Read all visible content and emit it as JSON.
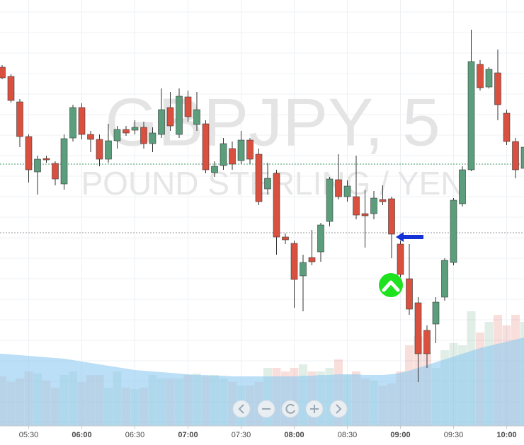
{
  "chart_data": {
    "type": "candlestick",
    "title": "GBPJPY, 5",
    "subtitle": "POUND STERLING / YEN",
    "x": [
      null,
      null,
      null,
      "05:30",
      null,
      null,
      null,
      null,
      null,
      "06:00",
      null,
      null,
      null,
      null,
      null,
      "06:30",
      null,
      null,
      null,
      null,
      null,
      "07:00",
      null,
      null,
      null,
      null,
      null,
      "07:30",
      null,
      null,
      null,
      null,
      null,
      "08:00",
      null,
      null,
      null,
      null,
      null,
      "08:30",
      null,
      null,
      null,
      null,
      null,
      "09:00",
      null,
      null,
      null,
      null,
      null,
      "09:30",
      null,
      null,
      null,
      null,
      null,
      "10:00",
      null,
      null
    ],
    "open": [
      505,
      492,
      456,
      407,
      357,
      376,
      369,
      340,
      405,
      448,
      410,
      403,
      375,
      401,
      417,
      416,
      420,
      397,
      410,
      448,
      410,
      463,
      424,
      425,
      356,
      366,
      390,
      373,
      402,
      382,
      333,
      355,
      265,
      256,
      210,
      236,
      244,
      287,
      346,
      322,
      322,
      298,
      298,
      318,
      319,
      255,
      206,
      172,
      133,
      142,
      180,
      229,
      312,
      360,
      509,
      477,
      497,
      440,
      400,
      362
    ],
    "high": [
      508,
      495,
      460,
      410,
      380,
      380,
      372,
      410,
      452,
      454,
      415,
      410,
      425,
      422,
      422,
      430,
      428,
      420,
      475,
      470,
      475,
      472,
      470,
      430,
      372,
      405,
      400,
      415,
      405,
      390,
      370,
      360,
      270,
      260,
      240,
      275,
      285,
      350,
      382,
      345,
      380,
      332,
      330,
      338,
      322,
      260,
      255,
      180,
      140,
      180,
      235,
      320,
      365,
      558,
      515,
      505,
      530,
      445,
      405,
      395
    ],
    "low": [
      488,
      455,
      392,
      342,
      325,
      370,
      338,
      332,
      400,
      403,
      385,
      365,
      370,
      390,
      408,
      410,
      390,
      385,
      405,
      415,
      405,
      428,
      415,
      355,
      350,
      360,
      360,
      368,
      368,
      310,
      325,
      240,
      255,
      165,
      160,
      225,
      230,
      280,
      318,
      315,
      290,
      250,
      290,
      310,
      235,
      208,
      155,
      60,
      80,
      115,
      175,
      225,
      308,
      358,
      472,
      475,
      430,
      395,
      348,
      355
    ],
    "close": [
      490,
      458,
      407,
      360,
      375,
      374,
      347,
      404,
      448,
      410,
      403,
      375,
      401,
      417,
      412,
      420,
      397,
      412,
      445,
      422,
      464,
      435,
      445,
      360,
      365,
      397,
      368,
      402,
      375,
      315,
      348,
      265,
      261,
      205,
      229,
      230,
      282,
      347,
      322,
      337,
      296,
      295,
      320,
      315,
      269,
      212,
      163,
      100,
      100,
      173,
      232,
      317,
      360,
      513,
      476,
      502,
      452,
      400,
      360,
      392
    ],
    "volume": [
      70,
      62,
      67,
      77,
      74,
      64,
      54,
      72,
      77,
      62,
      72,
      72,
      54,
      77,
      54,
      52,
      54,
      72,
      67,
      67,
      67,
      72,
      74,
      70,
      72,
      67,
      62,
      57,
      57,
      62,
      82,
      82,
      77,
      82,
      87,
      77,
      77,
      82,
      94,
      72,
      77,
      67,
      64,
      57,
      60,
      77,
      114,
      127,
      104,
      82,
      107,
      117,
      114,
      162,
      132,
      147,
      157,
      142,
      157,
      147
    ],
    "volume_ma": [
      102,
      101,
      100,
      99,
      98,
      97,
      96,
      95,
      93,
      91,
      89,
      87,
      85,
      83,
      81,
      79,
      78,
      77,
      76,
      75,
      74,
      73,
      72,
      72,
      71,
      71,
      70,
      70,
      70,
      70,
      70,
      70,
      70,
      70,
      71,
      71,
      72,
      72,
      73,
      73,
      73,
      72,
      72,
      72,
      73,
      75,
      78,
      82,
      86,
      90,
      94,
      98,
      102,
      106,
      110,
      113,
      116,
      119,
      122,
      125
    ],
    "ylim": [
      0,
      600
    ],
    "volume_lim": [
      0,
      600
    ],
    "up_color": "#5a9e7c",
    "down_color": "#d9503f",
    "volume_ma_color": "#8ec9f0",
    "price_lines": [
      {
        "value": 368,
        "color": "#3f9a6c"
      },
      {
        "value": 271,
        "color": "#9a9a9a"
      }
    ],
    "grid": true
  }
}
